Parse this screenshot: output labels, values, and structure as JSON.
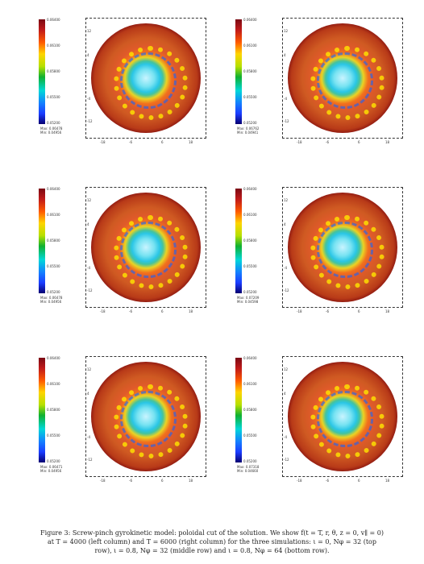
{
  "colorbar_ticks": [
    "0.06400",
    "0.06100",
    "0.05800",
    "0.05500",
    "0.05200"
  ],
  "y_ticks": [
    "12",
    "4",
    "-4",
    "-12"
  ],
  "x_ticks": [
    "-18",
    "-6",
    "6",
    "18"
  ],
  "panels": [
    {
      "max": "Max: 0.06478",
      "min": "Min: 0.04956"
    },
    {
      "max": "Max: 0.06762",
      "min": "Min: 0.04941"
    },
    {
      "max": "Max: 0.06478",
      "min": "Min: 0.04956"
    },
    {
      "max": "Max: 0.07209",
      "min": "Min: 0.04598"
    },
    {
      "max": "Max: 0.06471",
      "min": "Min: 0.04956"
    },
    {
      "max": "Max: 0.07318",
      "min": "Min: 0.04660"
    }
  ],
  "caption": {
    "line1": "Figure 3: Screw-pinch gyrokinetic model: poloidal cut of the solution. We show f(t = T, r, θ, z = 0, v∥ = 0)",
    "line2": "at T = 4000 (left column) and T = 6000 (right column) for the three simulations: ι = 0, Nφ = 32 (top",
    "line3": "row), ι = 0.8, Nφ = 32 (middle row) and ι = 0.8, Nφ = 64 (bottom row)."
  }
}
